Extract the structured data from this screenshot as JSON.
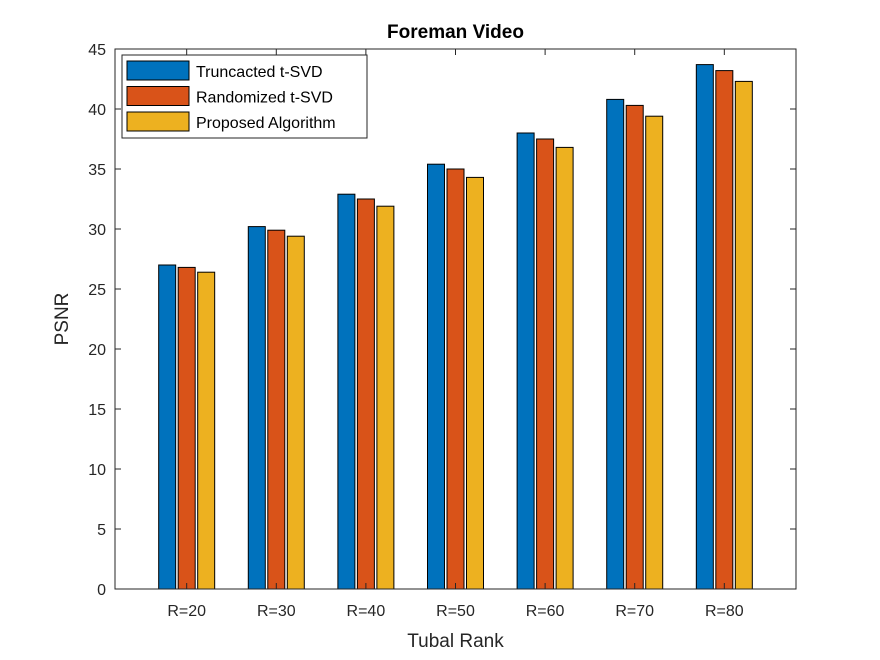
{
  "chart_data": {
    "type": "bar",
    "title": "Foreman Video",
    "xlabel": "Tubal Rank",
    "ylabel": "PSNR",
    "ylim": [
      0,
      45
    ],
    "yticks": [
      0,
      5,
      10,
      15,
      20,
      25,
      30,
      35,
      40,
      45
    ],
    "categories": [
      "R=20",
      "R=30",
      "R=40",
      "R=50",
      "R=60",
      "R=70",
      "R=80"
    ],
    "series": [
      {
        "name": "Truncacted t-SVD",
        "color": "#0072BD",
        "values": [
          27.0,
          30.2,
          32.9,
          35.4,
          38.0,
          40.8,
          43.7
        ]
      },
      {
        "name": "Randomized t-SVD",
        "color": "#D95319",
        "values": [
          26.8,
          29.9,
          32.5,
          35.0,
          37.5,
          40.3,
          43.2
        ]
      },
      {
        "name": "Proposed Algorithm",
        "color": "#EDB120",
        "values": [
          26.4,
          29.4,
          31.9,
          34.3,
          36.8,
          39.4,
          42.3
        ]
      }
    ],
    "grid": false,
    "legend_position": "top-left"
  }
}
